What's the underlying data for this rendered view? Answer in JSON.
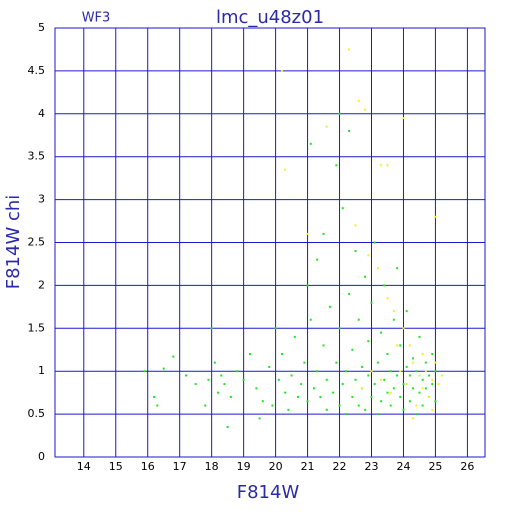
{
  "chart_data": {
    "type": "scatter",
    "title": "lmc_u48z01",
    "subtitle": "WF3",
    "xlabel": "F814W",
    "ylabel": "F814W chi",
    "xlim": [
      13.1,
      26.55
    ],
    "ylim": [
      0,
      5
    ],
    "xticks": [
      14,
      15,
      16,
      17,
      18,
      19,
      20,
      21,
      22,
      23,
      24,
      25,
      26
    ],
    "yticks": [
      0,
      0.5,
      1,
      1.5,
      2,
      2.5,
      3,
      3.5,
      4,
      4.5,
      5
    ],
    "grid": true,
    "grid_color": "#1a1acc",
    "series": [
      {
        "color": "#22e022",
        "x": [
          15.9,
          16.2,
          16.3,
          16.5,
          16.8,
          17.2,
          17.5,
          17.8,
          17.9,
          18.1,
          18.2,
          18.3,
          18.4,
          18.5,
          18.6,
          18.8,
          19.0,
          19.2,
          19.4,
          19.6,
          19.8,
          19.9,
          20.1,
          20.2,
          20.3,
          20.4,
          20.5,
          20.6,
          20.7,
          20.8,
          20.9,
          21.0,
          21.0,
          21.1,
          21.1,
          21.2,
          21.3,
          21.3,
          21.4,
          21.5,
          21.6,
          21.6,
          21.7,
          21.8,
          21.9,
          21.9,
          22.0,
          22.0,
          22.1,
          22.1,
          22.2,
          22.2,
          22.3,
          22.3,
          22.4,
          22.4,
          22.5,
          22.5,
          22.6,
          22.6,
          22.7,
          22.7,
          22.8,
          22.8,
          22.9,
          22.9,
          23.0,
          23.0,
          23.1,
          23.1,
          23.2,
          23.2,
          23.3,
          23.3,
          23.4,
          23.4,
          23.5,
          23.5,
          23.6,
          23.6,
          23.7,
          23.7,
          23.8,
          23.8,
          23.9,
          23.9,
          24.0,
          24.0,
          24.1,
          24.1,
          24.2,
          24.2,
          24.3,
          24.3,
          24.4,
          24.4,
          24.5,
          24.5,
          24.6,
          24.6,
          24.7,
          24.7,
          24.8,
          24.8,
          24.9,
          24.9,
          25.0,
          25.0,
          19.5,
          20.0,
          18.0,
          21.5,
          22.0
        ],
        "values": [
          1.0,
          0.7,
          0.6,
          1.03,
          1.17,
          0.95,
          0.85,
          0.6,
          0.9,
          1.1,
          0.75,
          0.95,
          0.85,
          0.35,
          0.7,
          1.0,
          0.9,
          1.2,
          0.8,
          0.65,
          1.05,
          0.6,
          0.9,
          1.2,
          0.75,
          0.55,
          0.95,
          1.4,
          0.7,
          0.85,
          1.1,
          0.65,
          2.0,
          1.6,
          3.65,
          0.8,
          1.0,
          2.3,
          0.7,
          1.3,
          0.9,
          0.55,
          1.75,
          0.75,
          1.1,
          3.4,
          0.6,
          1.5,
          0.85,
          2.9,
          1.0,
          0.5,
          1.9,
          3.8,
          0.7,
          1.25,
          0.9,
          2.4,
          0.6,
          1.6,
          1.05,
          0.8,
          2.1,
          0.55,
          1.35,
          0.95,
          0.7,
          1.8,
          0.85,
          2.5,
          1.1,
          0.5,
          0.65,
          1.45,
          0.9,
          2.0,
          0.75,
          1.2,
          1.0,
          0.6,
          1.6,
          0.8,
          0.95,
          2.2,
          0.7,
          1.3,
          0.85,
          0.55,
          1.05,
          1.7,
          0.65,
          0.95,
          0.8,
          1.15,
          0.5,
          1.0,
          0.75,
          1.4,
          0.9,
          0.6,
          1.1,
          0.8,
          0.95,
          0.7,
          1.2,
          0.85,
          0.65,
          1.0,
          0.45,
          1.5,
          1.5,
          2.6,
          4.0
        ]
      },
      {
        "color": "#f0f020",
        "x": [
          20.2,
          20.3,
          21.0,
          22.3,
          22.6,
          22.8,
          21.6,
          23.3,
          23.5,
          22.5,
          22.9,
          23.2,
          23.5,
          23.7,
          24.0,
          24.2,
          24.3,
          24.5,
          24.6,
          24.7,
          24.8,
          24.9,
          25.0,
          25.1,
          24.4,
          24.1,
          23.9,
          23.6,
          23.3,
          23.0,
          22.7,
          24.6,
          24.9,
          25.2,
          24.3,
          23.8,
          25.0,
          24.0
        ],
        "values": [
          4.5,
          3.35,
          2.6,
          4.75,
          4.15,
          4.05,
          3.85,
          3.4,
          3.4,
          2.7,
          2.35,
          2.2,
          1.85,
          1.7,
          1.5,
          1.3,
          1.1,
          0.95,
          0.8,
          1.0,
          0.7,
          0.9,
          1.1,
          0.85,
          0.6,
          0.85,
          1.0,
          0.75,
          0.9,
          1.0,
          0.8,
          1.2,
          0.55,
          0.95,
          0.45,
          1.3,
          2.8,
          3.95
        ]
      }
    ]
  }
}
